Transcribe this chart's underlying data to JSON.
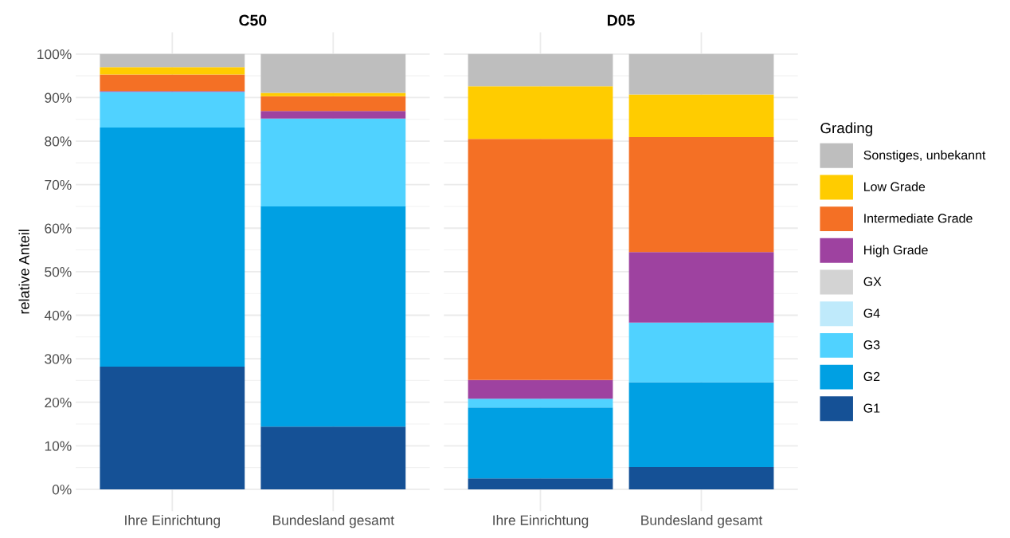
{
  "chart_data": [
    {
      "type": "bar",
      "title": "C50",
      "ylabel": "relative Anteil",
      "categories": [
        "Ihre Einrichtung",
        "Bundesland gesamt"
      ],
      "stacked": true,
      "ylim": [
        -5,
        105
      ],
      "yticks": [
        {
          "value": 0,
          "label": "0%"
        },
        {
          "value": 10,
          "label": "10%"
        },
        {
          "value": 20,
          "label": "20%"
        },
        {
          "value": 30,
          "label": "30%"
        },
        {
          "value": 40,
          "label": "40%"
        },
        {
          "value": 50,
          "label": "50%"
        },
        {
          "value": 60,
          "label": "60%"
        },
        {
          "value": 70,
          "label": "70%"
        },
        {
          "value": 80,
          "label": "80%"
        },
        {
          "value": 90,
          "label": "90%"
        },
        {
          "value": 100,
          "label": "100%"
        }
      ],
      "grid": true,
      "legend": false,
      "series": [
        {
          "color": "#155196",
          "values": [
            28.2,
            14.4
          ]
        },
        {
          "color": "#00a0e3",
          "values": [
            54.9,
            50.6
          ]
        },
        {
          "color": "#50d2ff",
          "values": [
            8.2,
            20.2
          ]
        },
        {
          "color": "#bfeafb",
          "values": [
            0,
            0
          ]
        },
        {
          "color": "#d3d3d3",
          "values": [
            0,
            0
          ]
        },
        {
          "color": "#9e42a0",
          "values": [
            0.2,
            1.7
          ]
        },
        {
          "color": "#f47025",
          "values": [
            3.8,
            3.4
          ]
        },
        {
          "color": "#ffcc00",
          "values": [
            1.7,
            0.8
          ]
        },
        {
          "color": "#bebebe",
          "values": [
            3.0,
            8.9
          ]
        }
      ]
    },
    {
      "type": "bar",
      "title": "D05",
      "categories": [
        "Ihre Einrichtung",
        "Bundesland gesamt"
      ],
      "stacked": true,
      "ylim": [
        -5,
        105
      ],
      "yticks": [
        0,
        10,
        20,
        30,
        40,
        50,
        60,
        70,
        80,
        90,
        100
      ],
      "tick_labels": "x",
      "grid": true,
      "legend": "right",
      "legend_title": "Grading",
      "series": [
        {
          "name": "G1",
          "color": "#155196",
          "values": [
            2.5,
            5.1
          ]
        },
        {
          "name": "G2",
          "color": "#00a0e3",
          "values": [
            16.3,
            19.5
          ]
        },
        {
          "name": "G3",
          "color": "#50d2ff",
          "values": [
            2.0,
            13.7
          ]
        },
        {
          "name": "G4",
          "color": "#bfeafb",
          "values": [
            0,
            0
          ]
        },
        {
          "name": "GX",
          "color": "#d3d3d3",
          "values": [
            0,
            0
          ]
        },
        {
          "name": "High Grade",
          "color": "#9e42a0",
          "values": [
            4.3,
            16.2
          ]
        },
        {
          "name": "Intermediate Grade",
          "color": "#f47025",
          "values": [
            55.4,
            26.4
          ]
        },
        {
          "name": "Low Grade",
          "color": "#ffcc00",
          "values": [
            12.1,
            9.8
          ]
        },
        {
          "name": "Sonstiges, unbekannt",
          "color": "#bebebe",
          "values": [
            7.4,
            9.3
          ]
        }
      ]
    }
  ]
}
